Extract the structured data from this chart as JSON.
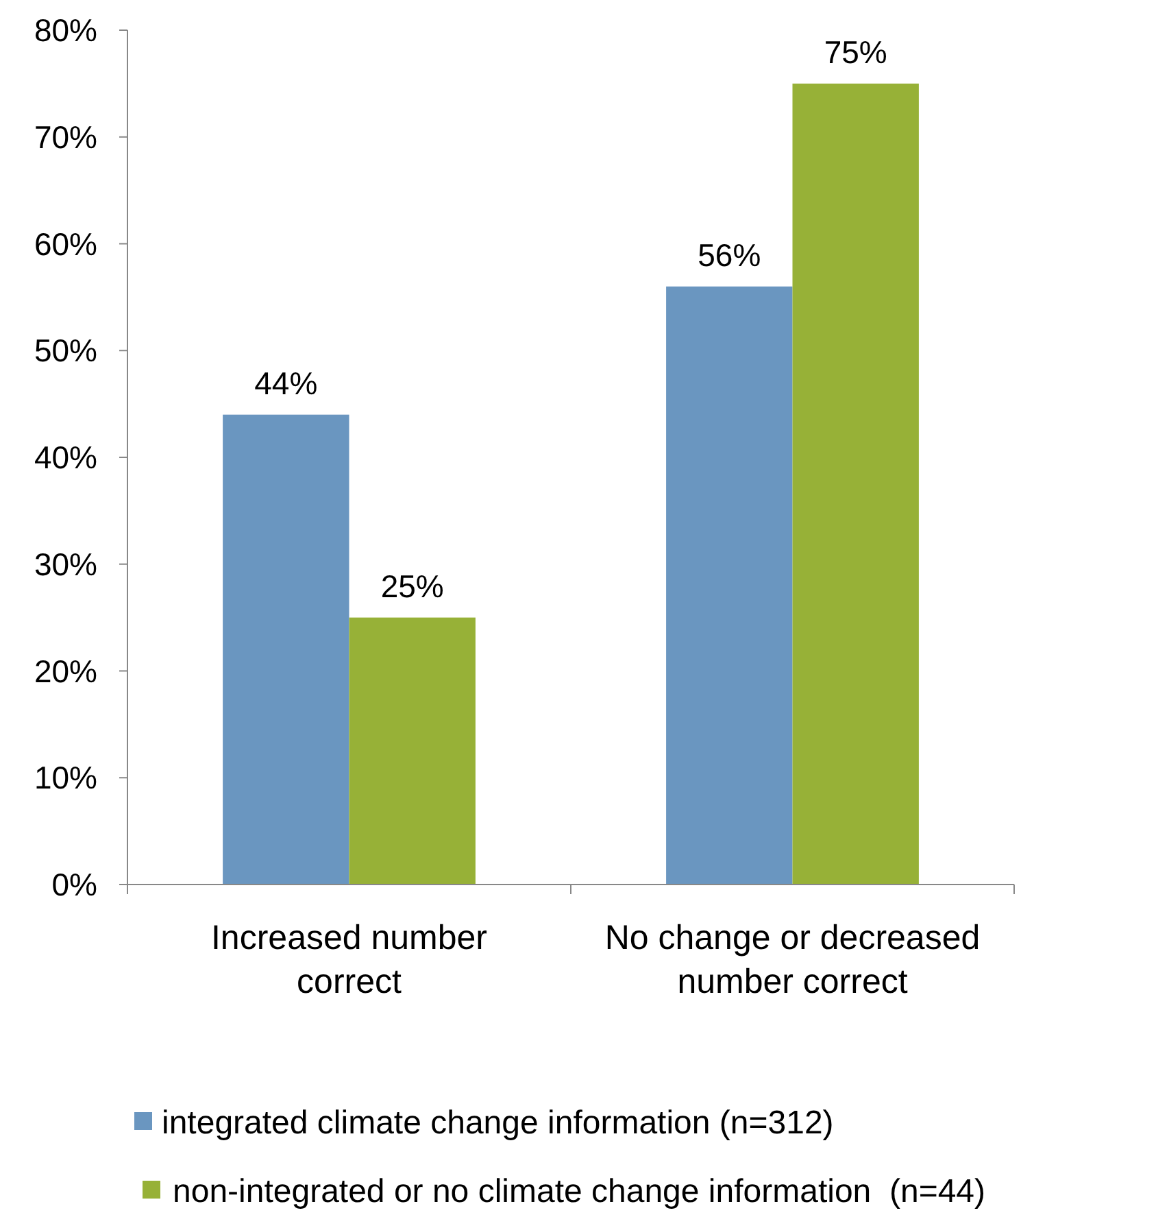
{
  "chart_data": {
    "type": "bar",
    "categories": [
      "Increased number correct",
      "No change or decreased number correct"
    ],
    "series": [
      {
        "name": "integrated climate change information (n=312)",
        "color": "#6a96c0",
        "values": [
          44,
          56
        ],
        "value_labels": [
          "44%",
          "56%"
        ]
      },
      {
        "name": "non-integrated or no climate change information  (n=44)",
        "color": "#97b137",
        "values": [
          25,
          75
        ],
        "value_labels": [
          "25%",
          "75%"
        ]
      }
    ],
    "ylim": [
      0,
      80
    ],
    "yticks": [
      {
        "value": 0,
        "label": "0%"
      },
      {
        "value": 10,
        "label": "10%"
      },
      {
        "value": 20,
        "label": "20%"
      },
      {
        "value": 30,
        "label": "30%"
      },
      {
        "value": 40,
        "label": "40%"
      },
      {
        "value": 50,
        "label": "50%"
      },
      {
        "value": 60,
        "label": "60%"
      },
      {
        "value": 70,
        "label": "70%"
      },
      {
        "value": 80,
        "label": "80%"
      }
    ],
    "grid": false,
    "legend": "bottom"
  }
}
